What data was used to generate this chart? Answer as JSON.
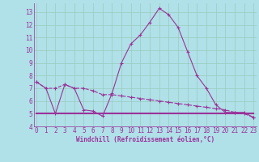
{
  "xlabel": "Windchill (Refroidissement éolien,°C)",
  "background_color": "#b0e0e8",
  "line_color": "#993399",
  "grid_color": "#99ccbb",
  "x_hours": [
    0,
    1,
    2,
    3,
    4,
    5,
    6,
    7,
    8,
    9,
    10,
    11,
    12,
    13,
    14,
    15,
    16,
    17,
    18,
    19,
    20,
    21,
    22,
    23
  ],
  "series1": [
    7.5,
    7.0,
    5.0,
    7.3,
    7.0,
    5.3,
    5.2,
    4.8,
    6.6,
    9.0,
    10.5,
    11.2,
    12.2,
    13.3,
    12.8,
    11.8,
    9.9,
    8.0,
    7.0,
    5.7,
    5.1,
    5.1,
    5.1,
    4.7
  ],
  "series2": [
    7.5,
    7.0,
    7.0,
    7.3,
    7.0,
    7.0,
    6.8,
    6.5,
    6.5,
    6.4,
    6.3,
    6.2,
    6.1,
    6.0,
    5.9,
    5.8,
    5.7,
    5.6,
    5.5,
    5.4,
    5.3,
    5.1,
    5.0,
    4.7
  ],
  "series3": [
    5.0,
    5.0,
    5.0,
    5.0,
    5.0,
    5.0,
    5.0,
    5.0,
    5.0,
    5.0,
    5.0,
    5.0,
    5.0,
    5.0,
    5.0,
    5.0,
    5.0,
    5.0,
    5.0,
    5.0,
    5.0,
    5.0,
    5.0,
    5.0
  ],
  "ylim_min": 4,
  "ylim_max": 13.7,
  "yticks": [
    4,
    5,
    6,
    7,
    8,
    9,
    10,
    11,
    12,
    13
  ],
  "xticks": [
    0,
    1,
    2,
    3,
    4,
    5,
    6,
    7,
    8,
    9,
    10,
    11,
    12,
    13,
    14,
    15,
    16,
    17,
    18,
    19,
    20,
    21,
    22,
    23
  ],
  "tick_fontsize": 5.5,
  "xlabel_fontsize": 5.5
}
